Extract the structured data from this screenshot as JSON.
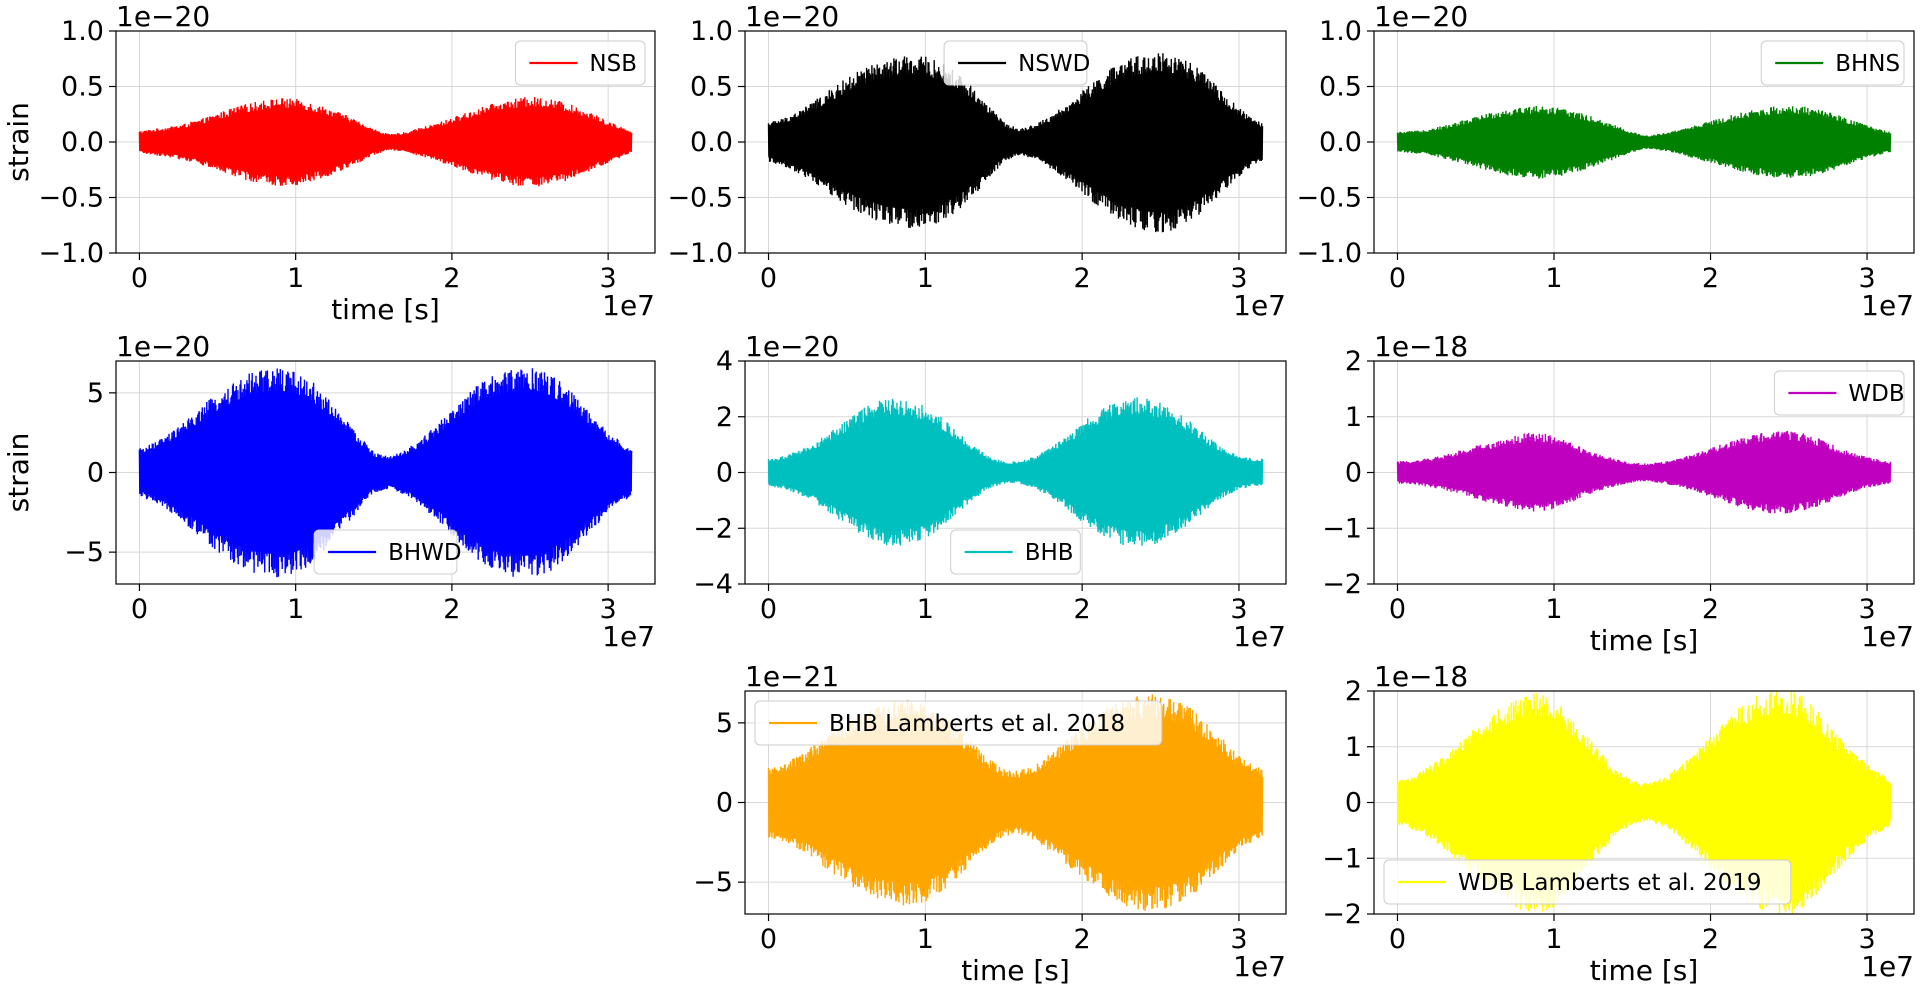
{
  "chart_data": [
    {
      "type": "line",
      "legend": "NSB",
      "color": "#ff0000",
      "grid": true,
      "legend_position": "upper right",
      "xlim": [
        -1500000,
        33000000
      ],
      "ylim": [
        -1.0,
        1.0
      ],
      "yticks": [
        -1.0,
        -0.5,
        0.0,
        0.5,
        1.0
      ],
      "ytick_labels": [
        "−1.0",
        "−0.5",
        "0.0",
        "0.5",
        "1.0"
      ],
      "xticks": [
        0,
        10000000,
        20000000,
        30000000
      ],
      "xtick_labels": [
        "0",
        "1",
        "2",
        "3"
      ],
      "xlabel": "time [s]",
      "ylabel": "strain",
      "x_offset_text": "1e7",
      "y_offset_text": "1e−20",
      "x": [
        0,
        1000000,
        2000000,
        3000000,
        4000000,
        5000000,
        6000000,
        7000000,
        8000000,
        9000000,
        10000000,
        11000000,
        12000000,
        13000000,
        14000000,
        15000000,
        16000000,
        17000000,
        18000000,
        19000000,
        20000000,
        21000000,
        22000000,
        23000000,
        24000000,
        25000000,
        26000000,
        27000000,
        28000000,
        29000000,
        30000000,
        31000000,
        31500000
      ],
      "amplitude": [
        0.1,
        0.12,
        0.14,
        0.17,
        0.21,
        0.26,
        0.31,
        0.35,
        0.38,
        0.4,
        0.39,
        0.36,
        0.31,
        0.26,
        0.19,
        0.12,
        0.07,
        0.09,
        0.13,
        0.17,
        0.22,
        0.27,
        0.32,
        0.36,
        0.39,
        0.41,
        0.4,
        0.37,
        0.32,
        0.26,
        0.19,
        0.13,
        0.1
      ]
    },
    {
      "type": "line",
      "legend": "NSWD",
      "color": "#000000",
      "grid": true,
      "legend_position": "upper center",
      "xlim": [
        -1500000,
        33000000
      ],
      "ylim": [
        -1.0,
        1.0
      ],
      "yticks": [
        -1.0,
        -0.5,
        0.0,
        0.5,
        1.0
      ],
      "ytick_labels": [
        "−1.0",
        "−0.5",
        "0.0",
        "0.5",
        "1.0"
      ],
      "xticks": [
        0,
        10000000,
        20000000,
        30000000
      ],
      "xtick_labels": [
        "0",
        "1",
        "2",
        "3"
      ],
      "xlabel": "",
      "ylabel": "",
      "x_offset_text": "1e7",
      "y_offset_text": "1e−20",
      "x": [
        0,
        1000000,
        2000000,
        3000000,
        4000000,
        5000000,
        6000000,
        7000000,
        8000000,
        9000000,
        10000000,
        11000000,
        12000000,
        13000000,
        14000000,
        15000000,
        16000000,
        17000000,
        18000000,
        19000000,
        20000000,
        21000000,
        22000000,
        23000000,
        24000000,
        25000000,
        26000000,
        27000000,
        28000000,
        29000000,
        30000000,
        31000000,
        31500000
      ],
      "amplitude": [
        0.18,
        0.22,
        0.29,
        0.38,
        0.48,
        0.58,
        0.66,
        0.72,
        0.76,
        0.78,
        0.77,
        0.72,
        0.63,
        0.5,
        0.34,
        0.18,
        0.12,
        0.16,
        0.24,
        0.34,
        0.46,
        0.58,
        0.68,
        0.75,
        0.8,
        0.82,
        0.79,
        0.71,
        0.59,
        0.45,
        0.31,
        0.2,
        0.17
      ]
    },
    {
      "type": "line",
      "legend": "BHNS",
      "color": "#008000",
      "grid": true,
      "legend_position": "upper right",
      "xlim": [
        -1500000,
        33000000
      ],
      "ylim": [
        -1.0,
        1.0
      ],
      "yticks": [
        -1.0,
        -0.5,
        0.0,
        0.5,
        1.0
      ],
      "ytick_labels": [
        "−1.0",
        "−0.5",
        "0.0",
        "0.5",
        "1.0"
      ],
      "xticks": [
        0,
        10000000,
        20000000,
        30000000
      ],
      "xtick_labels": [
        "0",
        "1",
        "2",
        "3"
      ],
      "xlabel": "",
      "ylabel": "",
      "x_offset_text": "1e7",
      "y_offset_text": "1e−20",
      "x": [
        0,
        1000000,
        2000000,
        3000000,
        4000000,
        5000000,
        6000000,
        7000000,
        8000000,
        9000000,
        10000000,
        11000000,
        12000000,
        13000000,
        14000000,
        15000000,
        16000000,
        17000000,
        18000000,
        19000000,
        20000000,
        21000000,
        22000000,
        23000000,
        24000000,
        25000000,
        26000000,
        27000000,
        28000000,
        29000000,
        30000000,
        31000000,
        31500000
      ],
      "amplitude": [
        0.09,
        0.1,
        0.12,
        0.15,
        0.19,
        0.23,
        0.27,
        0.3,
        0.32,
        0.33,
        0.32,
        0.29,
        0.25,
        0.2,
        0.15,
        0.09,
        0.06,
        0.08,
        0.11,
        0.15,
        0.19,
        0.23,
        0.27,
        0.3,
        0.32,
        0.33,
        0.32,
        0.29,
        0.25,
        0.2,
        0.15,
        0.11,
        0.09
      ]
    },
    {
      "type": "line",
      "legend": "BHWD",
      "color": "#0000ff",
      "grid": true,
      "legend_position": "lower center",
      "xlim": [
        -1500000,
        33000000
      ],
      "ylim": [
        -7,
        7
      ],
      "yticks": [
        -5,
        0,
        5
      ],
      "ytick_labels": [
        "−5",
        "0",
        "5"
      ],
      "xticks": [
        0,
        10000000,
        20000000,
        30000000
      ],
      "xtick_labels": [
        "0",
        "1",
        "2",
        "3"
      ],
      "xlabel": "",
      "ylabel": "strain",
      "x_offset_text": "1e7",
      "y_offset_text": "1e−20",
      "x": [
        0,
        1000000,
        2000000,
        3000000,
        4000000,
        5000000,
        6000000,
        7000000,
        8000000,
        9000000,
        10000000,
        11000000,
        12000000,
        13000000,
        14000000,
        15000000,
        16000000,
        17000000,
        18000000,
        19000000,
        20000000,
        21000000,
        22000000,
        23000000,
        24000000,
        25000000,
        26000000,
        27000000,
        28000000,
        29000000,
        30000000,
        31000000,
        31500000
      ],
      "amplitude": [
        1.5,
        1.9,
        2.5,
        3.3,
        4.2,
        5.0,
        5.7,
        6.2,
        6.5,
        6.6,
        6.4,
        5.8,
        4.8,
        3.6,
        2.4,
        1.3,
        1.0,
        1.4,
        2.1,
        3.0,
        4.0,
        5.0,
        5.8,
        6.3,
        6.6,
        6.7,
        6.4,
        5.7,
        4.7,
        3.6,
        2.6,
        1.8,
        1.5
      ]
    },
    {
      "type": "line",
      "legend": "BHB",
      "color": "#00bfbf",
      "grid": true,
      "legend_position": "lower center",
      "xlim": [
        -1500000,
        33000000
      ],
      "ylim": [
        -4,
        4
      ],
      "yticks": [
        -4,
        -2,
        0,
        2,
        4
      ],
      "ytick_labels": [
        "−4",
        "−2",
        "0",
        "2",
        "4"
      ],
      "xticks": [
        0,
        10000000,
        20000000,
        30000000
      ],
      "xtick_labels": [
        "0",
        "1",
        "2",
        "3"
      ],
      "xlabel": "",
      "ylabel": "",
      "x_offset_text": "1e7",
      "y_offset_text": "1e−20",
      "x": [
        0,
        1000000,
        2000000,
        3000000,
        4000000,
        5000000,
        6000000,
        7000000,
        8000000,
        9000000,
        10000000,
        11000000,
        12000000,
        13000000,
        14000000,
        15000000,
        16000000,
        17000000,
        18000000,
        19000000,
        20000000,
        21000000,
        22000000,
        23000000,
        24000000,
        25000000,
        26000000,
        27000000,
        28000000,
        29000000,
        30000000,
        31000000,
        31500000
      ],
      "amplitude": [
        0.5,
        0.6,
        0.8,
        1.1,
        1.5,
        1.9,
        2.3,
        2.6,
        2.7,
        2.6,
        2.4,
        2.0,
        1.5,
        1.0,
        0.6,
        0.4,
        0.4,
        0.6,
        0.9,
        1.3,
        1.8,
        2.2,
        2.5,
        2.7,
        2.7,
        2.5,
        2.2,
        1.8,
        1.3,
        0.9,
        0.6,
        0.5,
        0.5
      ]
    },
    {
      "type": "line",
      "legend": "WDB",
      "color": "#bf00bf",
      "grid": true,
      "legend_position": "upper right",
      "xlim": [
        -1500000,
        33000000
      ],
      "ylim": [
        -2,
        2
      ],
      "yticks": [
        -2,
        -1,
        0,
        1,
        2
      ],
      "ytick_labels": [
        "−2",
        "−1",
        "0",
        "1",
        "2"
      ],
      "xticks": [
        0,
        10000000,
        20000000,
        30000000
      ],
      "xtick_labels": [
        "0",
        "1",
        "2",
        "3"
      ],
      "xlabel": "time [s]",
      "ylabel": "",
      "x_offset_text": "1e7",
      "y_offset_text": "1e−18",
      "x": [
        0,
        1000000,
        2000000,
        3000000,
        4000000,
        5000000,
        6000000,
        7000000,
        8000000,
        9000000,
        10000000,
        11000000,
        12000000,
        13000000,
        14000000,
        15000000,
        16000000,
        17000000,
        18000000,
        19000000,
        20000000,
        21000000,
        22000000,
        23000000,
        24000000,
        25000000,
        26000000,
        27000000,
        28000000,
        29000000,
        30000000,
        31000000,
        31500000
      ],
      "amplitude": [
        0.2,
        0.22,
        0.26,
        0.32,
        0.4,
        0.48,
        0.55,
        0.62,
        0.7,
        0.72,
        0.66,
        0.55,
        0.42,
        0.32,
        0.24,
        0.18,
        0.16,
        0.2,
        0.26,
        0.34,
        0.44,
        0.54,
        0.63,
        0.7,
        0.74,
        0.75,
        0.7,
        0.6,
        0.48,
        0.37,
        0.28,
        0.22,
        0.2
      ]
    },
    {
      "type": "line",
      "legend": "BHB Lamberts et al. 2018",
      "color": "#ffa500",
      "grid": true,
      "legend_position": "upper left",
      "xlim": [
        -1500000,
        33000000
      ],
      "ylim": [
        -7,
        7
      ],
      "yticks": [
        -5,
        0,
        5
      ],
      "ytick_labels": [
        "−5",
        "0",
        "5"
      ],
      "xticks": [
        0,
        10000000,
        20000000,
        30000000
      ],
      "xtick_labels": [
        "0",
        "1",
        "2",
        "3"
      ],
      "xlabel": "time [s]",
      "ylabel": "",
      "x_offset_text": "1e7",
      "y_offset_text": "1e−21",
      "x": [
        0,
        1000000,
        2000000,
        3000000,
        4000000,
        5000000,
        6000000,
        7000000,
        8000000,
        9000000,
        10000000,
        11000000,
        12000000,
        13000000,
        14000000,
        15000000,
        16000000,
        17000000,
        18000000,
        19000000,
        20000000,
        21000000,
        22000000,
        23000000,
        24000000,
        25000000,
        26000000,
        27000000,
        28000000,
        29000000,
        30000000,
        31000000,
        31500000
      ],
      "amplitude": [
        2.2,
        2.5,
        3.0,
        3.7,
        4.4,
        5.1,
        5.7,
        6.1,
        6.4,
        6.5,
        6.3,
        5.7,
        4.8,
        3.8,
        2.8,
        2.1,
        2.0,
        2.4,
        3.1,
        3.9,
        4.8,
        5.6,
        6.2,
        6.6,
        6.8,
        6.8,
        6.5,
        5.9,
        5.0,
        4.0,
        3.0,
        2.4,
        2.2
      ]
    },
    {
      "type": "line",
      "legend": "WDB Lamberts et al. 2019",
      "color": "#ffff00",
      "grid": true,
      "legend_position": "lower left",
      "xlim": [
        -1500000,
        33000000
      ],
      "ylim": [
        -2,
        2
      ],
      "yticks": [
        -2,
        -1,
        0,
        1,
        2
      ],
      "ytick_labels": [
        "−2",
        "−1",
        "0",
        "1",
        "2"
      ],
      "xticks": [
        0,
        10000000,
        20000000,
        30000000
      ],
      "xtick_labels": [
        "0",
        "1",
        "2",
        "3"
      ],
      "xlabel": "time [s]",
      "ylabel": "",
      "x_offset_text": "1e7",
      "y_offset_text": "1e−18",
      "x": [
        0,
        1000000,
        2000000,
        3000000,
        4000000,
        5000000,
        6000000,
        7000000,
        8000000,
        9000000,
        10000000,
        11000000,
        12000000,
        13000000,
        14000000,
        15000000,
        16000000,
        17000000,
        18000000,
        19000000,
        20000000,
        21000000,
        22000000,
        23000000,
        24000000,
        25000000,
        26000000,
        27000000,
        28000000,
        29000000,
        30000000,
        31000000,
        31500000
      ],
      "amplitude": [
        0.4,
        0.5,
        0.65,
        0.85,
        1.1,
        1.35,
        1.6,
        1.8,
        1.95,
        2.0,
        1.9,
        1.6,
        1.25,
        0.9,
        0.6,
        0.4,
        0.35,
        0.45,
        0.65,
        0.9,
        1.2,
        1.5,
        1.75,
        1.95,
        2.05,
        2.05,
        1.9,
        1.6,
        1.25,
        0.95,
        0.7,
        0.5,
        0.45
      ]
    }
  ]
}
